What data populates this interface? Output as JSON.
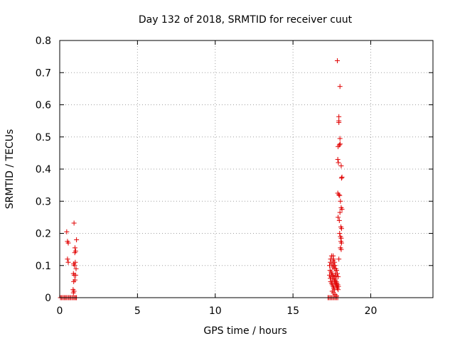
{
  "chart_data": {
    "type": "scatter",
    "title": "Day 132 of 2018, SRMTID for receiver cuut",
    "xlabel": "GPS time / hours",
    "ylabel": "SRMTID / TECUs",
    "xlim": [
      0,
      24
    ],
    "ylim": [
      0,
      0.8
    ],
    "xticks": [
      0,
      5,
      10,
      15,
      20
    ],
    "xtick_labels": [
      "0",
      "5",
      "10",
      "15",
      "20"
    ],
    "yticks": [
      0,
      0.1,
      0.2,
      0.3,
      0.4,
      0.5,
      0.6,
      0.7,
      0.8
    ],
    "ytick_labels": [
      "0",
      "0.1",
      "0.2",
      "0.3",
      "0.4",
      "0.5",
      "0.6",
      "0.7",
      "0.8"
    ],
    "grid": true,
    "marker": "+",
    "color": "#e00000",
    "series": [
      {
        "name": "SRMTID",
        "points": [
          [
            0.05,
            0
          ],
          [
            0.12,
            0
          ],
          [
            0.2,
            0
          ],
          [
            0.28,
            0
          ],
          [
            0.35,
            0
          ],
          [
            0.42,
            0
          ],
          [
            0.5,
            0
          ],
          [
            0.58,
            0
          ],
          [
            0.65,
            0
          ],
          [
            0.72,
            0
          ],
          [
            0.8,
            0
          ],
          [
            0.88,
            0
          ],
          [
            0.95,
            0
          ],
          [
            1.02,
            0
          ],
          [
            1.08,
            0
          ],
          [
            0.45,
            0.205
          ],
          [
            0.5,
            0.175
          ],
          [
            0.55,
            0.17
          ],
          [
            0.5,
            0.12
          ],
          [
            0.55,
            0.11
          ],
          [
            0.92,
            0.232
          ],
          [
            0.98,
            0.155
          ],
          [
            1.02,
            0.145
          ],
          [
            0.97,
            0.14
          ],
          [
            1.08,
            0.18
          ],
          [
            0.9,
            0.105
          ],
          [
            0.95,
            0.1
          ],
          [
            1.0,
            0.11
          ],
          [
            1.05,
            0.09
          ],
          [
            0.88,
            0.075
          ],
          [
            0.93,
            0.07
          ],
          [
            1.03,
            0.07
          ],
          [
            0.98,
            0.055
          ],
          [
            0.9,
            0.05
          ],
          [
            0.86,
            0.025
          ],
          [
            0.88,
            0.015
          ],
          [
            0.92,
            0.02
          ],
          [
            17.25,
            0
          ],
          [
            17.32,
            0
          ],
          [
            17.4,
            0
          ],
          [
            17.48,
            0
          ],
          [
            17.56,
            0
          ],
          [
            17.64,
            0
          ],
          [
            17.72,
            0
          ],
          [
            17.8,
            0
          ],
          [
            17.88,
            0
          ],
          [
            17.85,
            0.737
          ],
          [
            18.02,
            0.657
          ],
          [
            17.95,
            0.563
          ],
          [
            17.95,
            0.545
          ],
          [
            17.95,
            0.55
          ],
          [
            18.02,
            0.495
          ],
          [
            17.98,
            0.475
          ],
          [
            18.03,
            0.478
          ],
          [
            17.9,
            0.47
          ],
          [
            18.1,
            0.41
          ],
          [
            18.15,
            0.375
          ],
          [
            18.12,
            0.372
          ],
          [
            17.88,
            0.43
          ],
          [
            17.92,
            0.42
          ],
          [
            17.88,
            0.325
          ],
          [
            17.95,
            0.32
          ],
          [
            18.0,
            0.318
          ],
          [
            18.05,
            0.3
          ],
          [
            18.1,
            0.28
          ],
          [
            18.15,
            0.275
          ],
          [
            18.02,
            0.265
          ],
          [
            17.9,
            0.25
          ],
          [
            17.98,
            0.24
          ],
          [
            18.08,
            0.22
          ],
          [
            18.12,
            0.215
          ],
          [
            18.0,
            0.2
          ],
          [
            18.05,
            0.19
          ],
          [
            18.1,
            0.185
          ],
          [
            18.08,
            0.175
          ],
          [
            18.12,
            0.17
          ],
          [
            18.05,
            0.155
          ],
          [
            18.1,
            0.15
          ],
          [
            17.95,
            0.12
          ],
          [
            17.35,
            0.1
          ],
          [
            17.4,
            0.11
          ],
          [
            17.42,
            0.12
          ],
          [
            17.48,
            0.13
          ],
          [
            17.5,
            0.105
          ],
          [
            17.55,
            0.095
          ],
          [
            17.58,
            0.115
          ],
          [
            17.62,
            0.1
          ],
          [
            17.65,
            0.09
          ],
          [
            17.38,
            0.085
          ],
          [
            17.45,
            0.08
          ],
          [
            17.5,
            0.075
          ],
          [
            17.55,
            0.07
          ],
          [
            17.6,
            0.065
          ],
          [
            17.68,
            0.06
          ],
          [
            17.72,
            0.055
          ],
          [
            17.78,
            0.05
          ],
          [
            17.82,
            0.045
          ],
          [
            17.88,
            0.04
          ],
          [
            17.92,
            0.035
          ],
          [
            17.42,
            0.05
          ],
          [
            17.48,
            0.045
          ],
          [
            17.52,
            0.04
          ],
          [
            17.58,
            0.035
          ],
          [
            17.62,
            0.03
          ],
          [
            17.68,
            0.025
          ],
          [
            17.52,
            0.02
          ],
          [
            17.6,
            0.015
          ],
          [
            17.7,
            0.01
          ],
          [
            17.8,
            0.005
          ],
          [
            17.4,
            0.06
          ],
          [
            17.35,
            0.07
          ],
          [
            17.45,
            0.065
          ],
          [
            17.55,
            0.055
          ],
          [
            17.65,
            0.05
          ],
          [
            17.7,
            0.045
          ],
          [
            17.75,
            0.04
          ],
          [
            17.8,
            0.035
          ],
          [
            17.85,
            0.03
          ],
          [
            17.9,
            0.025
          ],
          [
            17.58,
            0.13
          ],
          [
            17.6,
            0.12
          ],
          [
            17.66,
            0.11
          ],
          [
            17.7,
            0.1
          ],
          [
            17.75,
            0.09
          ],
          [
            17.8,
            0.085
          ],
          [
            17.85,
            0.075
          ],
          [
            17.9,
            0.065
          ],
          [
            17.72,
            0.075
          ],
          [
            17.78,
            0.068
          ]
        ]
      }
    ]
  }
}
